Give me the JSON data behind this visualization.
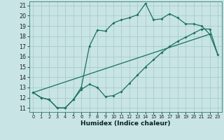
{
  "xlabel": "Humidex (Indice chaleur)",
  "background_color": "#c8e4e4",
  "grid_color": "#a8cccc",
  "line_color": "#1a7060",
  "xlim": [
    -0.5,
    23.5
  ],
  "ylim": [
    10.6,
    21.4
  ],
  "yticks": [
    11,
    12,
    13,
    14,
    15,
    16,
    17,
    18,
    19,
    20,
    21
  ],
  "xticks": [
    0,
    1,
    2,
    3,
    4,
    5,
    6,
    7,
    8,
    9,
    10,
    11,
    12,
    13,
    14,
    15,
    16,
    17,
    18,
    19,
    20,
    21,
    22,
    23
  ],
  "line1_x": [
    0,
    1,
    2,
    3,
    4,
    5,
    6,
    7,
    8,
    9,
    10,
    11,
    12,
    13,
    14,
    15,
    16,
    17,
    18,
    19,
    20,
    21,
    22
  ],
  "line1_y": [
    12.5,
    12.0,
    11.8,
    11.0,
    11.0,
    11.8,
    13.0,
    17.0,
    18.6,
    18.5,
    19.3,
    19.6,
    19.8,
    20.1,
    21.2,
    19.6,
    19.7,
    20.2,
    19.8,
    19.2,
    19.2,
    19.0,
    18.2
  ],
  "line2_x": [
    0,
    1,
    2,
    3,
    4,
    5,
    6,
    7,
    8,
    9,
    10,
    11,
    12,
    13,
    14,
    15,
    16,
    17,
    18,
    19,
    20,
    21,
    22,
    23
  ],
  "line2_y": [
    12.5,
    12.0,
    11.8,
    11.0,
    11.0,
    11.8,
    12.8,
    13.3,
    13.0,
    12.1,
    12.2,
    12.6,
    13.4,
    14.2,
    15.0,
    15.7,
    16.4,
    17.0,
    17.5,
    17.9,
    18.3,
    18.7,
    18.7,
    16.2
  ],
  "line3_x": [
    0,
    22,
    23
  ],
  "line3_y": [
    12.5,
    18.2,
    16.2
  ]
}
